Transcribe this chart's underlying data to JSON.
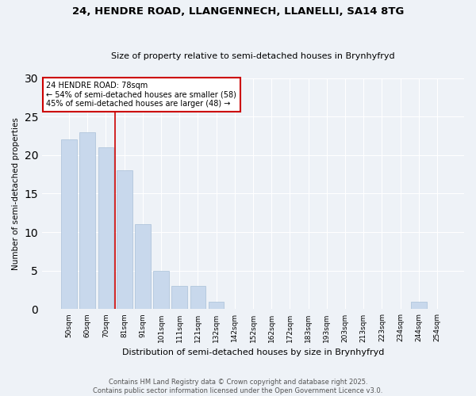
{
  "title1": "24, HENDRE ROAD, LLANGENNECH, LLANELLI, SA14 8TG",
  "title2": "Size of property relative to semi-detached houses in Brynhyfryd",
  "xlabel": "Distribution of semi-detached houses by size in Brynhyfryd",
  "ylabel": "Number of semi-detached properties",
  "categories": [
    "50sqm",
    "60sqm",
    "70sqm",
    "81sqm",
    "91sqm",
    "101sqm",
    "111sqm",
    "121sqm",
    "132sqm",
    "142sqm",
    "152sqm",
    "162sqm",
    "172sqm",
    "183sqm",
    "193sqm",
    "203sqm",
    "213sqm",
    "223sqm",
    "234sqm",
    "244sqm",
    "254sqm"
  ],
  "values": [
    22,
    23,
    21,
    18,
    11,
    5,
    3,
    3,
    1,
    0,
    0,
    0,
    0,
    0,
    0,
    0,
    0,
    0,
    0,
    1,
    0
  ],
  "bar_color": "#c8d8ec",
  "bar_edge_color": "#a8c0d8",
  "vline_color": "#cc0000",
  "annotation_title": "24 HENDRE ROAD: 78sqm",
  "annotation_line1": "← 54% of semi-detached houses are smaller (58)",
  "annotation_line2": "45% of semi-detached houses are larger (48) →",
  "annotation_box_color": "white",
  "annotation_box_edgecolor": "#cc0000",
  "ylim": [
    0,
    30
  ],
  "yticks": [
    0,
    5,
    10,
    15,
    20,
    25,
    30
  ],
  "footer": "Contains HM Land Registry data © Crown copyright and database right 2025.\nContains public sector information licensed under the Open Government Licence v3.0.",
  "bg_color": "#eef2f7"
}
